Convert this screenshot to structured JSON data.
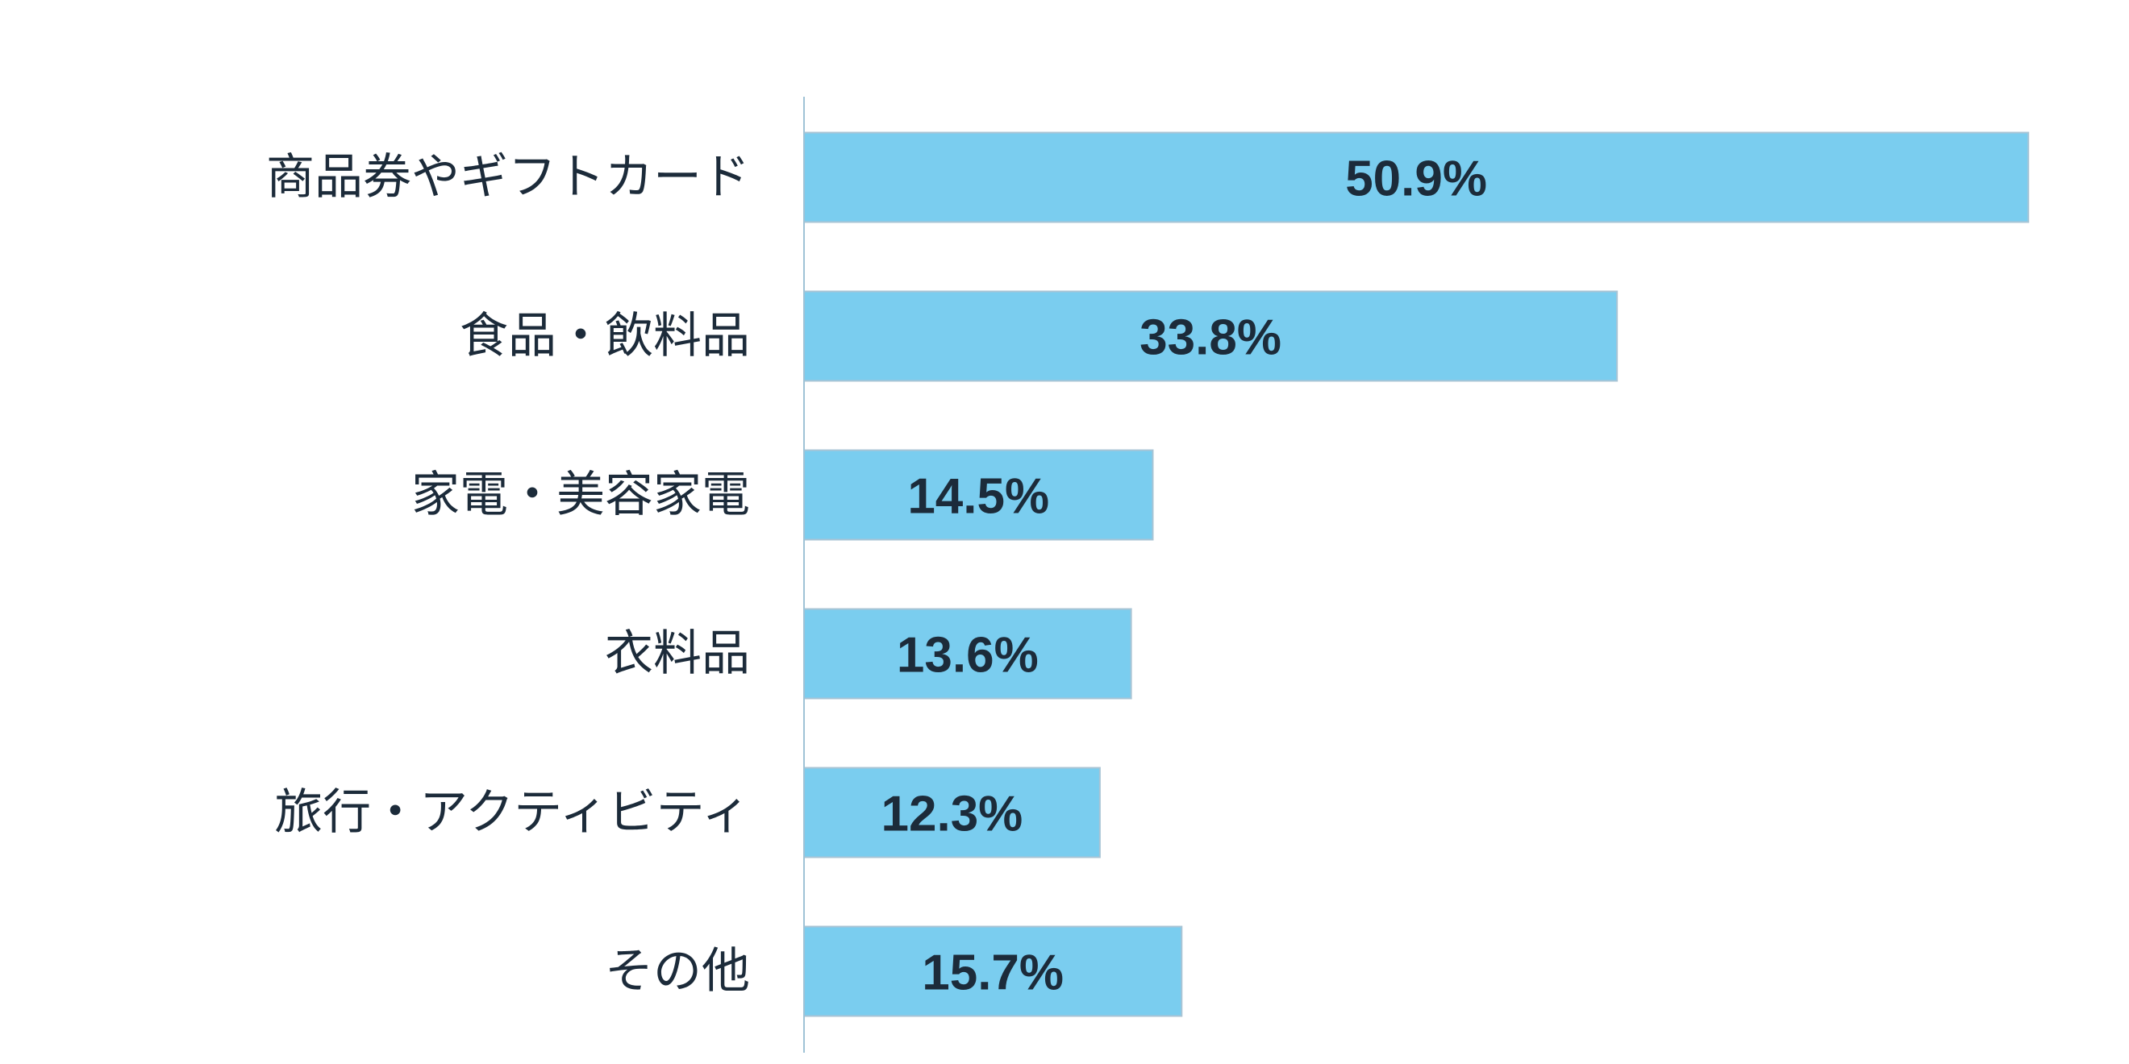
{
  "chart_data": {
    "type": "bar",
    "orientation": "horizontal",
    "categories": [
      "商品券やギフトカード",
      "食品・飲料品",
      "家電・美容家電",
      "衣料品",
      "旅行・アクティビティ",
      "その他"
    ],
    "values": [
      50.9,
      33.8,
      14.5,
      13.6,
      12.3,
      15.7
    ],
    "value_labels": [
      "50.9%",
      "33.8%",
      "14.5%",
      "13.6%",
      "12.3%",
      "15.7%"
    ],
    "unit": "%",
    "xlim": [
      0,
      52
    ],
    "grid": false,
    "legend": "none",
    "bar_color": "#7acdef",
    "bar_edge_color": "#a9c4d4",
    "axis_color": "#9fc2d6",
    "text_color": "#1c2b3a"
  }
}
